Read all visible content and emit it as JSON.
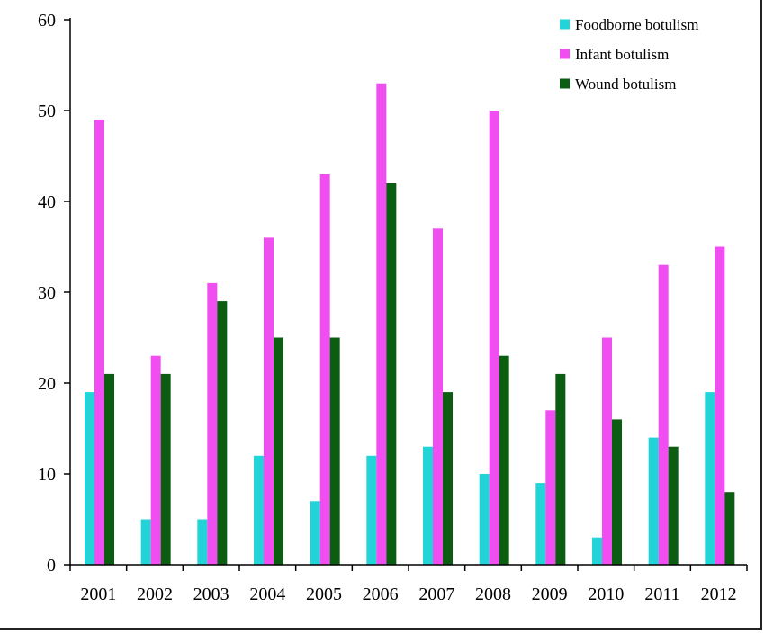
{
  "chart_data": {
    "type": "bar",
    "title": "",
    "xlabel": "",
    "ylabel": "",
    "categories": [
      "2001",
      "2002",
      "2003",
      "2004",
      "2005",
      "2006",
      "2007",
      "2008",
      "2009",
      "2010",
      "2011",
      "2012"
    ],
    "ylim": [
      0,
      60
    ],
    "yticks": [
      0,
      10,
      20,
      30,
      40,
      50,
      60
    ],
    "grid": false,
    "legend_position": "top-right",
    "series": [
      {
        "name": "Foodborne botulism",
        "color": "#22d3d8",
        "values": [
          19,
          5,
          5,
          12,
          7,
          12,
          13,
          10,
          9,
          3,
          14,
          19
        ]
      },
      {
        "name": "Infant botulism",
        "color": "#f04ef0",
        "values": [
          49,
          23,
          31,
          36,
          43,
          53,
          37,
          50,
          17,
          25,
          33,
          35
        ]
      },
      {
        "name": "Wound botulism",
        "color": "#0b5d12",
        "values": [
          21,
          21,
          29,
          25,
          25,
          42,
          19,
          23,
          21,
          16,
          13,
          8
        ]
      }
    ]
  }
}
